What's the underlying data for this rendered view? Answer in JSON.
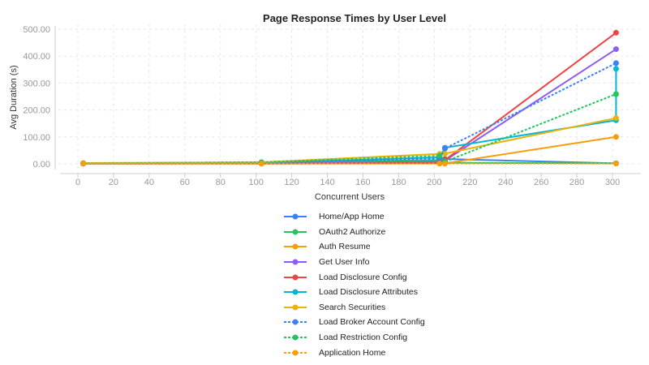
{
  "chart_data": {
    "type": "line",
    "title": "Page Response Times by User Level",
    "xlabel": "Concurrent Users",
    "ylabel": "Avg Duration (s)",
    "xlim": [
      -10,
      318
    ],
    "ylim": [
      -30,
      500
    ],
    "x_ticks": [
      0,
      20,
      40,
      60,
      80,
      100,
      120,
      140,
      160,
      180,
      200,
      220,
      240,
      260,
      280,
      300
    ],
    "y_ticks": [
      "0.00",
      "100.00",
      "200.00",
      "300.00",
      "400.00",
      "500.00"
    ],
    "grid": true,
    "legend_position": "bottom",
    "series": [
      {
        "name": "Home/App Home",
        "color": "#3b82f6",
        "dashed": false,
        "points": [
          [
            3,
            1
          ],
          [
            103,
            2
          ],
          [
            203,
            8
          ],
          [
            206,
            18
          ],
          [
            302,
            2
          ]
        ]
      },
      {
        "name": "OAuth2 Authorize",
        "color": "#22c55e",
        "dashed": false,
        "points": [
          [
            3,
            2
          ],
          [
            103,
            5
          ],
          [
            203,
            14
          ],
          [
            206,
            4
          ],
          [
            302,
            2
          ]
        ]
      },
      {
        "name": "Auth Resume",
        "color": "#f59e0b",
        "dashed": false,
        "points": [
          [
            3,
            1
          ],
          [
            103,
            1
          ],
          [
            203,
            1
          ],
          [
            206,
            2
          ],
          [
            302,
            100
          ]
        ]
      },
      {
        "name": "Get User Info",
        "color": "#8b5cf6",
        "dashed": false,
        "points": [
          [
            3,
            1
          ],
          [
            103,
            2
          ],
          [
            203,
            5
          ],
          [
            206,
            12
          ],
          [
            302,
            426
          ]
        ]
      },
      {
        "name": "Load Disclosure Config",
        "color": "#ef4444",
        "dashed": false,
        "points": [
          [
            3,
            1
          ],
          [
            103,
            1
          ],
          [
            203,
            3
          ],
          [
            206,
            14
          ],
          [
            302,
            487
          ]
        ]
      },
      {
        "name": "Load Disclosure Attributes",
        "color": "#06b6d4",
        "dashed": false,
        "points": [
          [
            3,
            2
          ],
          [
            103,
            4
          ],
          [
            203,
            24
          ],
          [
            206,
            60
          ],
          [
            302,
            162
          ],
          [
            302,
            353
          ]
        ]
      },
      {
        "name": "Search Securities",
        "color": "#eab308",
        "dashed": false,
        "points": [
          [
            3,
            3
          ],
          [
            103,
            6
          ],
          [
            203,
            37
          ],
          [
            206,
            38
          ],
          [
            302,
            170
          ]
        ]
      },
      {
        "name": "Load Broker Account Config",
        "color": "#3b82f6",
        "dashed": true,
        "points": [
          [
            3,
            1
          ],
          [
            103,
            3
          ],
          [
            203,
            20
          ],
          [
            206,
            57
          ],
          [
            302,
            374
          ]
        ]
      },
      {
        "name": "Load Restriction Config",
        "color": "#22c55e",
        "dashed": true,
        "points": [
          [
            3,
            2
          ],
          [
            103,
            6
          ],
          [
            203,
            30
          ],
          [
            206,
            8
          ],
          [
            302,
            259
          ]
        ]
      },
      {
        "name": "Application Home",
        "color": "#f59e0b",
        "dashed": true,
        "points": [
          [
            3,
            1
          ],
          [
            103,
            1
          ],
          [
            203,
            1
          ],
          [
            206,
            1
          ],
          [
            302,
            1
          ]
        ]
      }
    ]
  }
}
